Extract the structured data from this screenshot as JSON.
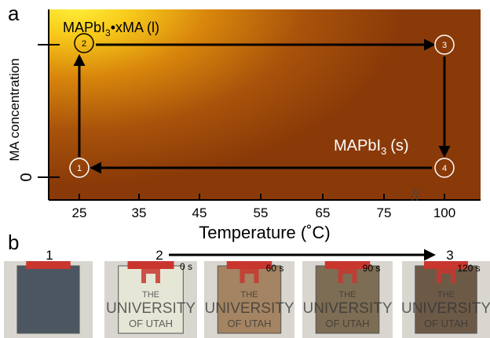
{
  "panel_a": {
    "label": "a",
    "y_axis_label": "MA concentration",
    "y_ticks": [
      0
    ],
    "x_axis_label": "Temperature (˚C)",
    "x_ticks": [
      25,
      35,
      45,
      55,
      65,
      75,
      100
    ],
    "liquid_phase": {
      "text": "MAPbI",
      "sub": "3",
      "rest": "•xMA (l)"
    },
    "solid_phase": {
      "text": "MAPbI",
      "sub": "3",
      "rest": "(s)"
    },
    "states": [
      "1",
      "2",
      "3",
      "4"
    ]
  },
  "panel_b": {
    "label": "b",
    "steps": [
      "1",
      "2",
      "3"
    ],
    "times": [
      "0 s",
      "60 s",
      "90 s",
      "120 s"
    ],
    "photo_text": [
      "THE",
      "UNIVERSITY",
      "OF UTAH"
    ]
  }
}
